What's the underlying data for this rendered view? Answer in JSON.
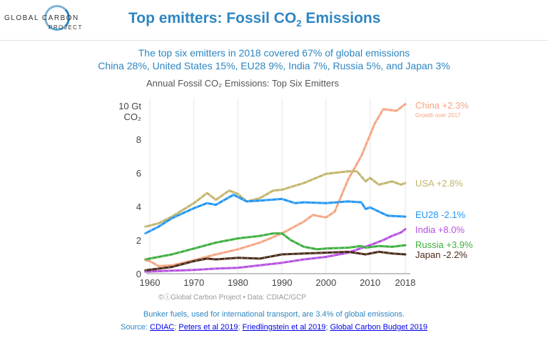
{
  "header": {
    "logo_line1": "GLOBAL CARBON",
    "logo_line2": "PROJECT",
    "title_prefix": "Top emitters: Fossil CO",
    "title_sub": "2",
    "title_suffix": " Emissions"
  },
  "summary": {
    "line1": "The top six emitters in 2018 covered 67% of global emissions",
    "line2": "China 28%, United States 15%, EU28 9%, India 7%, Russia 5%, and Japan 3%"
  },
  "chart_data": {
    "type": "line",
    "title": "Annual Fossil CO₂ Emissions: Top Six Emitters",
    "ylabel": "CO₂",
    "y_unit": "10 Gt",
    "ylim": [
      0,
      10.5
    ],
    "xlim": [
      1959,
      2019
    ],
    "x_ticks": [
      1960,
      1970,
      1980,
      1990,
      2000,
      2010,
      2018
    ],
    "y_ticks": [
      0,
      2,
      4,
      6,
      8
    ],
    "grid": "vertical",
    "credit": "©ⓘGlobal Carbon Project  •  Data: CDIAC/GCP",
    "annotation": "Growth over 2017",
    "series": [
      {
        "name": "China +2.3%",
        "color": "#f4a582",
        "points": [
          [
            1959,
            0.8
          ],
          [
            1960,
            0.75
          ],
          [
            1962,
            0.45
          ],
          [
            1965,
            0.5
          ],
          [
            1970,
            0.8
          ],
          [
            1975,
            1.15
          ],
          [
            1980,
            1.45
          ],
          [
            1985,
            1.85
          ],
          [
            1990,
            2.4
          ],
          [
            1995,
            3.1
          ],
          [
            1997,
            3.5
          ],
          [
            2000,
            3.35
          ],
          [
            2002,
            3.7
          ],
          [
            2005,
            5.6
          ],
          [
            2008,
            7.0
          ],
          [
            2011,
            8.9
          ],
          [
            2013,
            9.8
          ],
          [
            2016,
            9.7
          ],
          [
            2018,
            10.1
          ]
        ]
      },
      {
        "name": "USA +2.8%",
        "color": "#c2b56b",
        "points": [
          [
            1959,
            2.8
          ],
          [
            1962,
            3.0
          ],
          [
            1965,
            3.4
          ],
          [
            1970,
            4.2
          ],
          [
            1973,
            4.8
          ],
          [
            1975,
            4.4
          ],
          [
            1978,
            4.95
          ],
          [
            1980,
            4.75
          ],
          [
            1982,
            4.3
          ],
          [
            1985,
            4.5
          ],
          [
            1988,
            4.95
          ],
          [
            1990,
            5.0
          ],
          [
            1995,
            5.4
          ],
          [
            2000,
            5.95
          ],
          [
            2005,
            6.1
          ],
          [
            2007,
            6.1
          ],
          [
            2009,
            5.5
          ],
          [
            2010,
            5.7
          ],
          [
            2012,
            5.3
          ],
          [
            2015,
            5.5
          ],
          [
            2017,
            5.3
          ],
          [
            2018,
            5.4
          ]
        ]
      },
      {
        "name": "EU28 -2.1%",
        "color": "#2196f3",
        "points": [
          [
            1959,
            2.4
          ],
          [
            1962,
            2.8
          ],
          [
            1965,
            3.3
          ],
          [
            1970,
            3.9
          ],
          [
            1973,
            4.2
          ],
          [
            1975,
            4.1
          ],
          [
            1979,
            4.7
          ],
          [
            1982,
            4.3
          ],
          [
            1985,
            4.35
          ],
          [
            1990,
            4.45
          ],
          [
            1993,
            4.2
          ],
          [
            1995,
            4.25
          ],
          [
            2000,
            4.2
          ],
          [
            2005,
            4.3
          ],
          [
            2008,
            4.25
          ],
          [
            2009,
            3.85
          ],
          [
            2010,
            3.95
          ],
          [
            2012,
            3.7
          ],
          [
            2014,
            3.45
          ],
          [
            2018,
            3.4
          ]
        ]
      },
      {
        "name": "India +8.0%",
        "color": "#b550e0",
        "points": [
          [
            1959,
            0.12
          ],
          [
            1965,
            0.18
          ],
          [
            1970,
            0.22
          ],
          [
            1975,
            0.3
          ],
          [
            1980,
            0.35
          ],
          [
            1985,
            0.5
          ],
          [
            1990,
            0.65
          ],
          [
            1995,
            0.85
          ],
          [
            2000,
            1.0
          ],
          [
            2005,
            1.25
          ],
          [
            2010,
            1.7
          ],
          [
            2013,
            2.0
          ],
          [
            2015,
            2.25
          ],
          [
            2017,
            2.45
          ],
          [
            2018,
            2.65
          ]
        ]
      },
      {
        "name": "Russia +3.9%",
        "color": "#3fae3f",
        "points": [
          [
            1959,
            0.85
          ],
          [
            1965,
            1.15
          ],
          [
            1970,
            1.5
          ],
          [
            1975,
            1.85
          ],
          [
            1980,
            2.1
          ],
          [
            1985,
            2.25
          ],
          [
            1988,
            2.4
          ],
          [
            1990,
            2.4
          ],
          [
            1992,
            2.0
          ],
          [
            1995,
            1.6
          ],
          [
            1998,
            1.45
          ],
          [
            2000,
            1.5
          ],
          [
            2005,
            1.55
          ],
          [
            2008,
            1.65
          ],
          [
            2009,
            1.55
          ],
          [
            2012,
            1.65
          ],
          [
            2015,
            1.6
          ],
          [
            2018,
            1.7
          ]
        ]
      },
      {
        "name": "Japan -2.2%",
        "color": "#4a2a1a",
        "points": [
          [
            1959,
            0.2
          ],
          [
            1965,
            0.4
          ],
          [
            1970,
            0.75
          ],
          [
            1973,
            0.9
          ],
          [
            1975,
            0.85
          ],
          [
            1980,
            0.95
          ],
          [
            1985,
            0.9
          ],
          [
            1990,
            1.15
          ],
          [
            1995,
            1.2
          ],
          [
            2000,
            1.25
          ],
          [
            2005,
            1.3
          ],
          [
            2009,
            1.15
          ],
          [
            2012,
            1.3
          ],
          [
            2015,
            1.2
          ],
          [
            2018,
            1.15
          ]
        ]
      }
    ]
  },
  "footer": {
    "line1": "Bunker fuels, used for international transport, are 3.4% of global emissions.",
    "source_label": "Source: ",
    "links": [
      "CDIAC",
      "Peters et al 2019",
      "Friedlingstein et al 2019",
      "Global Carbon Budget 2019"
    ],
    "separator": "; "
  }
}
